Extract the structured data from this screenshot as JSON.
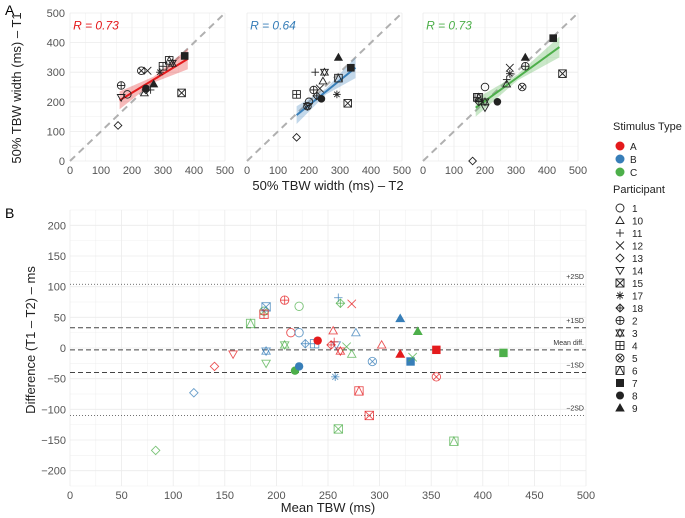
{
  "colors": {
    "A": "#e41a1c",
    "B": "#377eb8",
    "C": "#4daf4a",
    "grid": "#ebebeb",
    "axis": "#555555"
  },
  "panel_a": {
    "label": "A",
    "xlabel": "50% TBW width (ms) – T2",
    "ylabel": "50% TBW width (ms) – T1",
    "ticks": [
      "0",
      "100",
      "200",
      "300",
      "400",
      "500"
    ]
  },
  "panel_b": {
    "label": "B",
    "xlabel": "Mean TBW (ms)",
    "ylabel": "Difference  (T1 – T2) – ms",
    "xticks": [
      "0",
      "50",
      "100",
      "150",
      "200",
      "250",
      "300",
      "350",
      "400",
      "450",
      "500"
    ],
    "yticks": [
      "−200",
      "−150",
      "−100",
      "−50",
      "0",
      "50",
      "100",
      "150",
      "200"
    ],
    "lines": [
      {
        "label": "+2SD",
        "value": 104,
        "style": "dotted"
      },
      {
        "label": "+1SD",
        "value": 33,
        "style": "dashed"
      },
      {
        "label": "Mean diff.",
        "value": -3,
        "style": "dashed"
      },
      {
        "label": "−1SD",
        "value": -40,
        "style": "dashed"
      },
      {
        "label": "−2SD",
        "value": -110,
        "style": "dotted"
      }
    ]
  },
  "legend": {
    "stimulus_title": "Stimulus Type",
    "stimulus_items": [
      {
        "label": "A",
        "color": "#e41a1c"
      },
      {
        "label": "B",
        "color": "#377eb8"
      },
      {
        "label": "C",
        "color": "#4daf4a"
      }
    ],
    "participant_title": "Participant",
    "participant_items": [
      {
        "label": "1",
        "shape": "circle"
      },
      {
        "label": "10",
        "shape": "triangle"
      },
      {
        "label": "11",
        "shape": "plus"
      },
      {
        "label": "12",
        "shape": "cross"
      },
      {
        "label": "13",
        "shape": "diamond"
      },
      {
        "label": "14",
        "shape": "down-triangle"
      },
      {
        "label": "15",
        "shape": "boxed-x"
      },
      {
        "label": "17",
        "shape": "asterisk"
      },
      {
        "label": "18",
        "shape": "diamond-plus"
      },
      {
        "label": "2",
        "shape": "circle-plus"
      },
      {
        "label": "3",
        "shape": "star-of-david"
      },
      {
        "label": "4",
        "shape": "boxed-plus"
      },
      {
        "label": "5",
        "shape": "circle-x"
      },
      {
        "label": "6",
        "shape": "square-triangle"
      },
      {
        "label": "7",
        "shape": "filled-square"
      },
      {
        "label": "8",
        "shape": "filled-circle"
      },
      {
        "label": "9",
        "shape": "filled-triangle"
      }
    ]
  },
  "chart_data": [
    {
      "type": "scatter",
      "panel": "A",
      "facet": "A",
      "annotation": "R = 0.73",
      "xlim": [
        0,
        500
      ],
      "ylim": [
        0,
        500
      ],
      "reference_line": "identity (dashed)",
      "fit": {
        "x": [
          160,
          380
        ],
        "y": [
          205,
          345
        ]
      },
      "points": [
        {
          "p": "1",
          "x": 185,
          "y": 225
        },
        {
          "p": "10",
          "x": 240,
          "y": 230
        },
        {
          "p": "11",
          "x": 260,
          "y": 240
        },
        {
          "p": "12",
          "x": 250,
          "y": 305
        },
        {
          "p": "13",
          "x": 155,
          "y": 120
        },
        {
          "p": "14",
          "x": 165,
          "y": 215
        },
        {
          "p": "15",
          "x": 360,
          "y": 230
        },
        {
          "p": "17",
          "x": 290,
          "y": 300
        },
        {
          "p": "18",
          "x": 245,
          "y": 240
        },
        {
          "p": "2",
          "x": 165,
          "y": 255
        },
        {
          "p": "3",
          "x": 330,
          "y": 330
        },
        {
          "p": "4",
          "x": 300,
          "y": 320
        },
        {
          "p": "5",
          "x": 230,
          "y": 305
        },
        {
          "p": "6",
          "x": 320,
          "y": 340
        },
        {
          "p": "7",
          "x": 370,
          "y": 355
        },
        {
          "p": "8",
          "x": 245,
          "y": 245
        },
        {
          "p": "9",
          "x": 270,
          "y": 260
        }
      ]
    },
    {
      "type": "scatter",
      "panel": "A",
      "facet": "B",
      "annotation": "R = 0.64",
      "xlim": [
        0,
        500
      ],
      "ylim": [
        0,
        500
      ],
      "reference_line": "identity (dashed)",
      "fit": {
        "x": [
          160,
          350
        ],
        "y": [
          155,
          315
        ]
      },
      "points": [
        {
          "p": "1",
          "x": 200,
          "y": 200
        },
        {
          "p": "10",
          "x": 245,
          "y": 270
        },
        {
          "p": "11",
          "x": 220,
          "y": 300
        },
        {
          "p": "12",
          "x": 235,
          "y": 245
        },
        {
          "p": "13",
          "x": 160,
          "y": 80
        },
        {
          "p": "14",
          "x": 195,
          "y": 185
        },
        {
          "p": "15",
          "x": 325,
          "y": 195
        },
        {
          "p": "17",
          "x": 290,
          "y": 225
        },
        {
          "p": "18",
          "x": 225,
          "y": 220
        },
        {
          "p": "2",
          "x": 215,
          "y": 240
        },
        {
          "p": "3",
          "x": 250,
          "y": 300
        },
        {
          "p": "4",
          "x": 160,
          "y": 225
        },
        {
          "p": "5",
          "x": 195,
          "y": 185
        },
        {
          "p": "6",
          "x": 295,
          "y": 280
        },
        {
          "p": "7",
          "x": 335,
          "y": 315
        },
        {
          "p": "8",
          "x": 240,
          "y": 210
        },
        {
          "p": "9",
          "x": 295,
          "y": 350
        }
      ]
    },
    {
      "type": "scatter",
      "panel": "A",
      "facet": "C",
      "annotation": "R = 0.73",
      "xlim": [
        0,
        500
      ],
      "ylim": [
        0,
        500
      ],
      "reference_line": "identity (dashed)",
      "fit": {
        "x": [
          170,
          440
        ],
        "y": [
          180,
          385
        ]
      },
      "points": [
        {
          "p": "1",
          "x": 200,
          "y": 250
        },
        {
          "p": "10",
          "x": 270,
          "y": 260
        },
        {
          "p": "11",
          "x": 270,
          "y": 275
        },
        {
          "p": "12",
          "x": 280,
          "y": 315
        },
        {
          "p": "13",
          "x": 160,
          "y": 0
        },
        {
          "p": "14",
          "x": 200,
          "y": 180
        },
        {
          "p": "15",
          "x": 450,
          "y": 295
        },
        {
          "p": "17",
          "x": 280,
          "y": 295
        },
        {
          "p": "18",
          "x": 180,
          "y": 200
        },
        {
          "p": "2",
          "x": 330,
          "y": 320
        },
        {
          "p": "3",
          "x": 200,
          "y": 200
        },
        {
          "p": "4",
          "x": 175,
          "y": 215
        },
        {
          "p": "5",
          "x": 320,
          "y": 250
        },
        {
          "p": "6",
          "x": 180,
          "y": 215
        },
        {
          "p": "7",
          "x": 420,
          "y": 415
        },
        {
          "p": "8",
          "x": 240,
          "y": 200
        },
        {
          "p": "9",
          "x": 330,
          "y": 350
        }
      ]
    },
    {
      "type": "scatter",
      "panel": "B",
      "xlim": [
        0,
        500
      ],
      "ylim": [
        -200,
        200
      ],
      "points": [
        {
          "p": "13",
          "s": "C",
          "x": 83,
          "y": -167
        },
        {
          "p": "13",
          "s": "B",
          "x": 120,
          "y": -73
        },
        {
          "p": "13",
          "s": "A",
          "x": 140,
          "y": -30
        },
        {
          "p": "14",
          "s": "A",
          "x": 158,
          "y": -10
        },
        {
          "p": "6",
          "s": "C",
          "x": 175,
          "y": 40
        },
        {
          "p": "3",
          "s": "B",
          "x": 190,
          "y": -5
        },
        {
          "p": "14",
          "s": "C",
          "x": 190,
          "y": -25
        },
        {
          "p": "5",
          "s": "C",
          "x": 188,
          "y": 60
        },
        {
          "p": "15",
          "s": "B",
          "x": 190,
          "y": 67
        },
        {
          "p": "4",
          "s": "A",
          "x": 188,
          "y": 55
        },
        {
          "p": "2",
          "s": "A",
          "x": 208,
          "y": 78
        },
        {
          "p": "3",
          "s": "C",
          "x": 208,
          "y": 5
        },
        {
          "p": "1",
          "s": "A",
          "x": 214,
          "y": 25
        },
        {
          "p": "1",
          "s": "C",
          "x": 222,
          "y": 68
        },
        {
          "p": "8",
          "s": "C",
          "x": 218,
          "y": -37
        },
        {
          "p": "8",
          "s": "B",
          "x": 222,
          "y": -30
        },
        {
          "p": "1",
          "s": "B",
          "x": 222,
          "y": 25
        },
        {
          "p": "18",
          "s": "B",
          "x": 228,
          "y": 7
        },
        {
          "p": "4",
          "s": "B",
          "x": 237,
          "y": 7
        },
        {
          "p": "8",
          "s": "A",
          "x": 240,
          "y": 12
        },
        {
          "p": "17",
          "s": "B",
          "x": 257,
          "y": -47
        },
        {
          "p": "14",
          "s": "B",
          "x": 258,
          "y": 5
        },
        {
          "p": "10",
          "s": "A",
          "x": 255,
          "y": 28
        },
        {
          "p": "18",
          "s": "A",
          "x": 253,
          "y": 5
        },
        {
          "p": "11",
          "s": "A",
          "x": 256,
          "y": 10
        },
        {
          "p": "3",
          "s": "A",
          "x": 262,
          "y": -5
        },
        {
          "p": "11",
          "s": "B",
          "x": 260,
          "y": 82
        },
        {
          "p": "18",
          "s": "C",
          "x": 262,
          "y": 73
        },
        {
          "p": "12",
          "s": "A",
          "x": 273,
          "y": 72
        },
        {
          "p": "15",
          "s": "C",
          "x": 260,
          "y": -132
        },
        {
          "p": "12",
          "s": "C",
          "x": 268,
          "y": 2
        },
        {
          "p": "10",
          "s": "C",
          "x": 273,
          "y": -10
        },
        {
          "p": "10",
          "s": "B",
          "x": 277,
          "y": 25
        },
        {
          "p": "6",
          "s": "A",
          "x": 280,
          "y": -70
        },
        {
          "p": "15",
          "s": "A",
          "x": 290,
          "y": -110
        },
        {
          "p": "5",
          "s": "B",
          "x": 293,
          "y": -22
        },
        {
          "p": "10",
          "s": "A",
          "x": 302,
          "y": 5
        },
        {
          "p": "9",
          "s": "A",
          "x": 320,
          "y": -10
        },
        {
          "p": "9",
          "s": "B",
          "x": 320,
          "y": 48
        },
        {
          "p": "9",
          "s": "C",
          "x": 337,
          "y": 27
        },
        {
          "p": "7",
          "s": "B",
          "x": 330,
          "y": -22
        },
        {
          "p": "12",
          "s": "C",
          "x": 332,
          "y": -15
        },
        {
          "p": "5",
          "s": "A",
          "x": 355,
          "y": -47
        },
        {
          "p": "7",
          "s": "A",
          "x": 355,
          "y": -3
        },
        {
          "p": "6",
          "s": "C",
          "x": 372,
          "y": -152
        },
        {
          "p": "7",
          "s": "C",
          "x": 420,
          "y": -8
        }
      ]
    }
  ]
}
